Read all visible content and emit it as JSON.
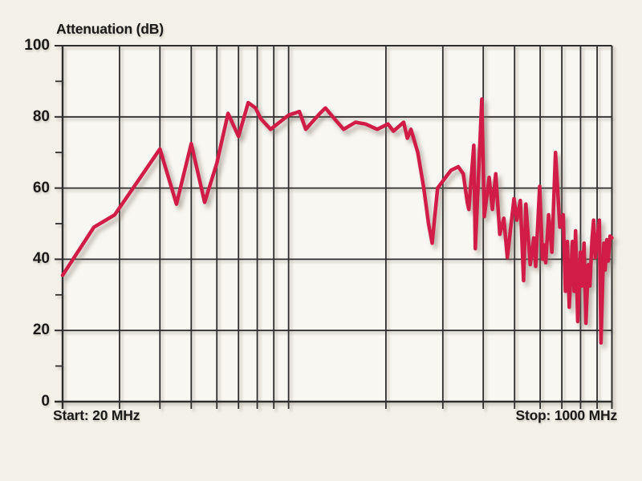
{
  "title": "Attenuation (dB)",
  "x_axis": {
    "start_label": "Start: 20 MHz",
    "stop_label": "Stop: 1000 MHz"
  },
  "colors": {
    "background": "#f2f0e9",
    "plot_fill": "#f8f7f2",
    "grid": "#2e2d2e",
    "trace": "#d01c47",
    "text": "#1a1a1a"
  },
  "chart_data": {
    "type": "line",
    "title": "Attenuation (dB)",
    "xlabel_start": "Start: 20 MHz",
    "xlabel_stop": "Stop: 1000 MHz",
    "x_scale": "log",
    "x_range_mhz": [
      20,
      1000
    ],
    "y_range_db": [
      0,
      100
    ],
    "y_major_ticks": [
      0,
      20,
      40,
      60,
      80,
      100
    ],
    "y_minor_ticks": [
      10,
      30,
      50,
      70,
      90
    ],
    "x_gridlines_mhz": [
      30,
      40,
      50,
      60,
      70,
      80,
      90,
      100,
      200,
      300,
      400,
      500,
      600,
      700,
      800,
      900,
      1000
    ],
    "grid": true,
    "legend": false,
    "series": [
      {
        "name": "attenuation",
        "points_mhz_db": [
          [
            20,
            35.5
          ],
          [
            25,
            49
          ],
          [
            29,
            52.5
          ],
          [
            40,
            71
          ],
          [
            45,
            55.5
          ],
          [
            50,
            72.5
          ],
          [
            55,
            56
          ],
          [
            60,
            67
          ],
          [
            65,
            81
          ],
          [
            70,
            74.5
          ],
          [
            75,
            84
          ],
          [
            79,
            82.5
          ],
          [
            82,
            79.5
          ],
          [
            88,
            76.5
          ],
          [
            100,
            80.5
          ],
          [
            108,
            81.5
          ],
          [
            113,
            76.5
          ],
          [
            125,
            81
          ],
          [
            130,
            82.5
          ],
          [
            140,
            79
          ],
          [
            148,
            76.5
          ],
          [
            161,
            78.5
          ],
          [
            173,
            78
          ],
          [
            188,
            76.5
          ],
          [
            203,
            78
          ],
          [
            211,
            76
          ],
          [
            227,
            78.5
          ],
          [
            233,
            74
          ],
          [
            239,
            76.5
          ],
          [
            251,
            70
          ],
          [
            262,
            60
          ],
          [
            271,
            50
          ],
          [
            278,
            44.5
          ],
          [
            289,
            60
          ],
          [
            303,
            62.5
          ],
          [
            318,
            65
          ],
          [
            335,
            66
          ],
          [
            347,
            64
          ],
          [
            357,
            56
          ],
          [
            361,
            54
          ],
          [
            374,
            72
          ],
          [
            378,
            43
          ],
          [
            396,
            85
          ],
          [
            403,
            52
          ],
          [
            417,
            63
          ],
          [
            427,
            54
          ],
          [
            437,
            64
          ],
          [
            450,
            47
          ],
          [
            463,
            51.5
          ],
          [
            475,
            40.5
          ],
          [
            498,
            57
          ],
          [
            508,
            51
          ],
          [
            521,
            56.5
          ],
          [
            533,
            34
          ],
          [
            542,
            55.5
          ],
          [
            559,
            38.5
          ],
          [
            573,
            46
          ],
          [
            581,
            38
          ],
          [
            598,
            60.5
          ],
          [
            610,
            40
          ],
          [
            617,
            44
          ],
          [
            624,
            39
          ],
          [
            637,
            52.5
          ],
          [
            652,
            42
          ],
          [
            669,
            70
          ],
          [
            690,
            49
          ],
          [
            707,
            52.5
          ],
          [
            718,
            31
          ],
          [
            728,
            45
          ],
          [
            738,
            26.5
          ],
          [
            755,
            45
          ],
          [
            764,
            31
          ],
          [
            772,
            48
          ],
          [
            784,
            22.5
          ],
          [
            799,
            42
          ],
          [
            808,
            32.5
          ],
          [
            820,
            44.5
          ],
          [
            831,
            22
          ],
          [
            845,
            38.5
          ],
          [
            855,
            32.5
          ],
          [
            868,
            45.5
          ],
          [
            878,
            51
          ],
          [
            888,
            40.5
          ],
          [
            914,
            51
          ],
          [
            925,
            16.5
          ],
          [
            944,
            44.5
          ],
          [
            953,
            37
          ],
          [
            964,
            45.5
          ],
          [
            974,
            39.5
          ],
          [
            987,
            46.5
          ],
          [
            1000,
            46
          ]
        ]
      }
    ]
  }
}
